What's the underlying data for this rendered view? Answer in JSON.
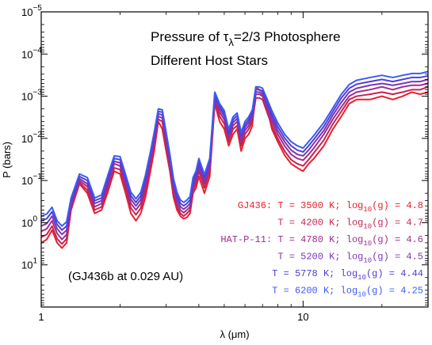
{
  "chart_data": {
    "type": "line",
    "title_line1_prefix": "Pressure of τ",
    "title_line1_sub": "λ",
    "title_line1_suffix": "=2/3 Photosphere",
    "title_line2": "Different Host Stars",
    "xlabel": "λ (μm)",
    "ylabel": "P (bars)",
    "x_scale": "log",
    "y_scale": "log",
    "y_inverted": true,
    "xlim": [
      1,
      30
    ],
    "ylim": [
      1e-05,
      100
    ],
    "x_ticks": [
      {
        "value": 1,
        "label": "1"
      },
      {
        "value": 10,
        "label": "10"
      }
    ],
    "y_ticks": [
      {
        "value": 1e-05,
        "base": "10",
        "exp": "−5"
      },
      {
        "value": 0.0001,
        "base": "10",
        "exp": "−4"
      },
      {
        "value": 0.001,
        "base": "10",
        "exp": "−3"
      },
      {
        "value": 0.01,
        "base": "10",
        "exp": "−2"
      },
      {
        "value": 0.1,
        "base": "10",
        "exp": "−1"
      },
      {
        "value": 1,
        "base": "10",
        "exp": "0"
      },
      {
        "value": 10,
        "base": "10",
        "exp": "1"
      }
    ],
    "annotation": "(GJ436b at 0.029 AU)",
    "legend_placement": "bottom-right",
    "x": [
      1.0,
      1.05,
      1.1,
      1.15,
      1.2,
      1.25,
      1.3,
      1.4,
      1.5,
      1.6,
      1.7,
      1.8,
      1.9,
      2.0,
      2.1,
      2.2,
      2.3,
      2.4,
      2.5,
      2.6,
      2.7,
      2.8,
      2.9,
      3.0,
      3.1,
      3.2,
      3.3,
      3.4,
      3.5,
      3.6,
      3.7,
      3.8,
      3.9,
      4.0,
      4.2,
      4.4,
      4.6,
      4.8,
      5.0,
      5.2,
      5.4,
      5.6,
      5.8,
      6.0,
      6.2,
      6.4,
      6.6,
      6.8,
      7.0,
      7.3,
      7.6,
      8.0,
      8.5,
      9.0,
      9.5,
      10.0,
      10.5,
      11.0,
      12.0,
      13.0,
      14.0,
      15.0,
      16.0,
      18.0,
      20.0,
      22.0,
      24.0,
      26.0,
      28.0,
      30.0
    ],
    "series": [
      {
        "label_name": "GJ436:",
        "label_text": "T = 3500 K; log",
        "sub": "10",
        "label_tail": "(g) = 4.8",
        "color": "#e8202a",
        "values": [
          3.0,
          2.5,
          1.5,
          3.0,
          4.0,
          3.0,
          0.5,
          0.12,
          0.2,
          0.6,
          0.5,
          0.18,
          0.06,
          0.07,
          0.2,
          0.6,
          0.9,
          0.6,
          0.25,
          0.07,
          0.02,
          0.004,
          0.006,
          0.02,
          0.06,
          0.25,
          0.5,
          0.7,
          0.8,
          0.75,
          0.6,
          0.2,
          0.15,
          0.08,
          0.2,
          0.08,
          0.0015,
          0.004,
          0.006,
          0.015,
          0.008,
          0.006,
          0.02,
          0.01,
          0.008,
          0.005,
          0.0006,
          0.0007,
          0.0008,
          0.002,
          0.006,
          0.012,
          0.025,
          0.04,
          0.05,
          0.06,
          0.04,
          0.03,
          0.015,
          0.006,
          0.003,
          0.0015,
          0.0012,
          0.0012,
          0.001,
          0.0012,
          0.001,
          0.0008,
          0.0009,
          0.0008
        ]
      },
      {
        "label_name": "",
        "label_text": "T = 4200 K; log",
        "sub": "10",
        "label_tail": "(g) = 4.7",
        "color": "#c42452",
        "values": [
          2.2,
          1.9,
          1.2,
          2.4,
          3.2,
          2.4,
          0.45,
          0.11,
          0.17,
          0.5,
          0.42,
          0.15,
          0.05,
          0.055,
          0.16,
          0.45,
          0.65,
          0.45,
          0.18,
          0.05,
          0.015,
          0.0035,
          0.004,
          0.016,
          0.05,
          0.2,
          0.42,
          0.6,
          0.7,
          0.6,
          0.5,
          0.17,
          0.12,
          0.06,
          0.15,
          0.06,
          0.0013,
          0.003,
          0.0045,
          0.012,
          0.006,
          0.005,
          0.015,
          0.008,
          0.006,
          0.004,
          0.0011,
          0.0011,
          0.0012,
          0.0025,
          0.005,
          0.01,
          0.02,
          0.032,
          0.04,
          0.045,
          0.032,
          0.022,
          0.011,
          0.0045,
          0.0023,
          0.0012,
          0.001,
          0.0009,
          0.0008,
          0.0009,
          0.0008,
          0.0007,
          0.0007,
          0.0006
        ]
      },
      {
        "label_name": "HAT-P-11:",
        "label_text": "T = 4780 K; log",
        "sub": "10",
        "label_tail": "(g) = 4.6",
        "color": "#a02e8e",
        "values": [
          1.6,
          1.4,
          0.9,
          1.8,
          2.5,
          1.9,
          0.4,
          0.1,
          0.14,
          0.42,
          0.35,
          0.12,
          0.04,
          0.045,
          0.12,
          0.35,
          0.5,
          0.35,
          0.14,
          0.04,
          0.012,
          0.003,
          0.0033,
          0.012,
          0.04,
          0.16,
          0.35,
          0.5,
          0.58,
          0.5,
          0.42,
          0.14,
          0.1,
          0.05,
          0.12,
          0.05,
          0.0011,
          0.0024,
          0.0036,
          0.01,
          0.005,
          0.004,
          0.012,
          0.0065,
          0.005,
          0.0033,
          0.0009,
          0.0009,
          0.001,
          0.002,
          0.004,
          0.008,
          0.015,
          0.024,
          0.03,
          0.033,
          0.024,
          0.017,
          0.008,
          0.0035,
          0.0018,
          0.001,
          0.0008,
          0.0007,
          0.0006,
          0.0007,
          0.0006,
          0.00055,
          0.00055,
          0.0005
        ]
      },
      {
        "label_name": "",
        "label_text": "T = 5200 K; log",
        "sub": "10",
        "label_tail": "(g) = 4.5",
        "color": "#7a36b8",
        "values": [
          1.2,
          1.05,
          0.7,
          1.4,
          1.9,
          1.5,
          0.35,
          0.09,
          0.12,
          0.35,
          0.3,
          0.1,
          0.035,
          0.038,
          0.1,
          0.28,
          0.4,
          0.28,
          0.11,
          0.033,
          0.01,
          0.0026,
          0.0028,
          0.01,
          0.033,
          0.13,
          0.28,
          0.42,
          0.48,
          0.42,
          0.35,
          0.12,
          0.085,
          0.042,
          0.1,
          0.042,
          0.001,
          0.002,
          0.003,
          0.0085,
          0.0042,
          0.0034,
          0.01,
          0.0055,
          0.0042,
          0.0028,
          0.0008,
          0.0008,
          0.0009,
          0.0017,
          0.0033,
          0.0065,
          0.012,
          0.019,
          0.024,
          0.026,
          0.019,
          0.013,
          0.0065,
          0.0028,
          0.0014,
          0.0008,
          0.00065,
          0.00055,
          0.0005,
          0.00055,
          0.0005,
          0.00045,
          0.00045,
          0.0004
        ]
      },
      {
        "label_name": "",
        "label_text": "T = 5778 K; log",
        "sub": "10",
        "label_tail": "(g) = 4.44",
        "color": "#503ed6",
        "values": [
          0.9,
          0.8,
          0.55,
          1.1,
          1.5,
          1.2,
          0.3,
          0.08,
          0.1,
          0.3,
          0.26,
          0.085,
          0.03,
          0.032,
          0.085,
          0.23,
          0.33,
          0.23,
          0.09,
          0.028,
          0.0085,
          0.0023,
          0.0024,
          0.0085,
          0.028,
          0.11,
          0.23,
          0.35,
          0.4,
          0.35,
          0.29,
          0.1,
          0.07,
          0.035,
          0.085,
          0.035,
          0.0009,
          0.0017,
          0.0026,
          0.0072,
          0.0036,
          0.0029,
          0.0085,
          0.0047,
          0.0036,
          0.0024,
          0.0007,
          0.0007,
          0.00075,
          0.0014,
          0.0027,
          0.0053,
          0.0098,
          0.015,
          0.019,
          0.021,
          0.015,
          0.0105,
          0.0052,
          0.0023,
          0.0011,
          0.00065,
          0.00052,
          0.00045,
          0.0004,
          0.00045,
          0.0004,
          0.00036,
          0.00036,
          0.00033
        ]
      },
      {
        "label_name": "",
        "label_text": "T = 6200 K; log",
        "sub": "10",
        "label_tail": "(g) = 4.25",
        "color": "#3a5cf5",
        "values": [
          0.7,
          0.62,
          0.43,
          0.9,
          1.2,
          0.95,
          0.26,
          0.07,
          0.085,
          0.26,
          0.22,
          0.072,
          0.026,
          0.027,
          0.072,
          0.19,
          0.27,
          0.19,
          0.075,
          0.024,
          0.0072,
          0.002,
          0.0021,
          0.0072,
          0.024,
          0.09,
          0.19,
          0.29,
          0.33,
          0.29,
          0.24,
          0.085,
          0.06,
          0.03,
          0.072,
          0.03,
          0.0008,
          0.0015,
          0.0022,
          0.0061,
          0.0031,
          0.0025,
          0.0072,
          0.004,
          0.0031,
          0.0021,
          0.0006,
          0.0006,
          0.00065,
          0.0012,
          0.0022,
          0.0043,
          0.008,
          0.012,
          0.015,
          0.017,
          0.012,
          0.0085,
          0.0042,
          0.0019,
          0.0009,
          0.00053,
          0.00042,
          0.00036,
          0.00032,
          0.00036,
          0.00032,
          0.00029,
          0.00029,
          0.00026
        ]
      }
    ]
  }
}
